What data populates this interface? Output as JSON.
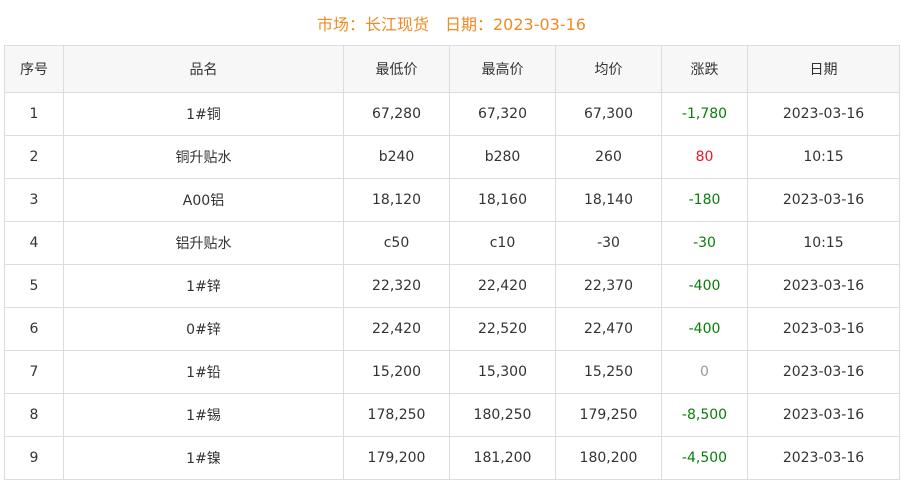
{
  "title": "市场：长江现货　日期：2023-03-16",
  "colors": {
    "title": "#f08a24",
    "up": "#f0142a",
    "down": "#0a7d0a",
    "flat": "#999999"
  },
  "headers": [
    "序号",
    "品名",
    "最低价",
    "最高价",
    "均价",
    "涨跌",
    "日期"
  ],
  "rows": [
    [
      "1",
      "1#铜",
      "67,280",
      "67,320",
      "67,300",
      "-1,780",
      "2023-03-16"
    ],
    [
      "2",
      "铜升贴水",
      "b240",
      "b280",
      "260",
      "80",
      "10:15"
    ],
    [
      "3",
      "A00铝",
      "18,120",
      "18,160",
      "18,140",
      "-180",
      "2023-03-16"
    ],
    [
      "4",
      "铝升贴水",
      "c50",
      "c10",
      "-30",
      "-30",
      "10:15"
    ],
    [
      "5",
      "1#锌",
      "22,320",
      "22,420",
      "22,370",
      "-400",
      "2023-03-16"
    ],
    [
      "6",
      "0#锌",
      "22,420",
      "22,520",
      "22,470",
      "-400",
      "2023-03-16"
    ],
    [
      "7",
      "1#铅",
      "15,200",
      "15,300",
      "15,250",
      "0",
      "2023-03-16"
    ],
    [
      "8",
      "1#锡",
      "178,250",
      "180,250",
      "179,250",
      "-8,500",
      "2023-03-16"
    ],
    [
      "9",
      "1#镍",
      "179,200",
      "181,200",
      "180,200",
      "-4,500",
      "2023-03-16"
    ]
  ]
}
